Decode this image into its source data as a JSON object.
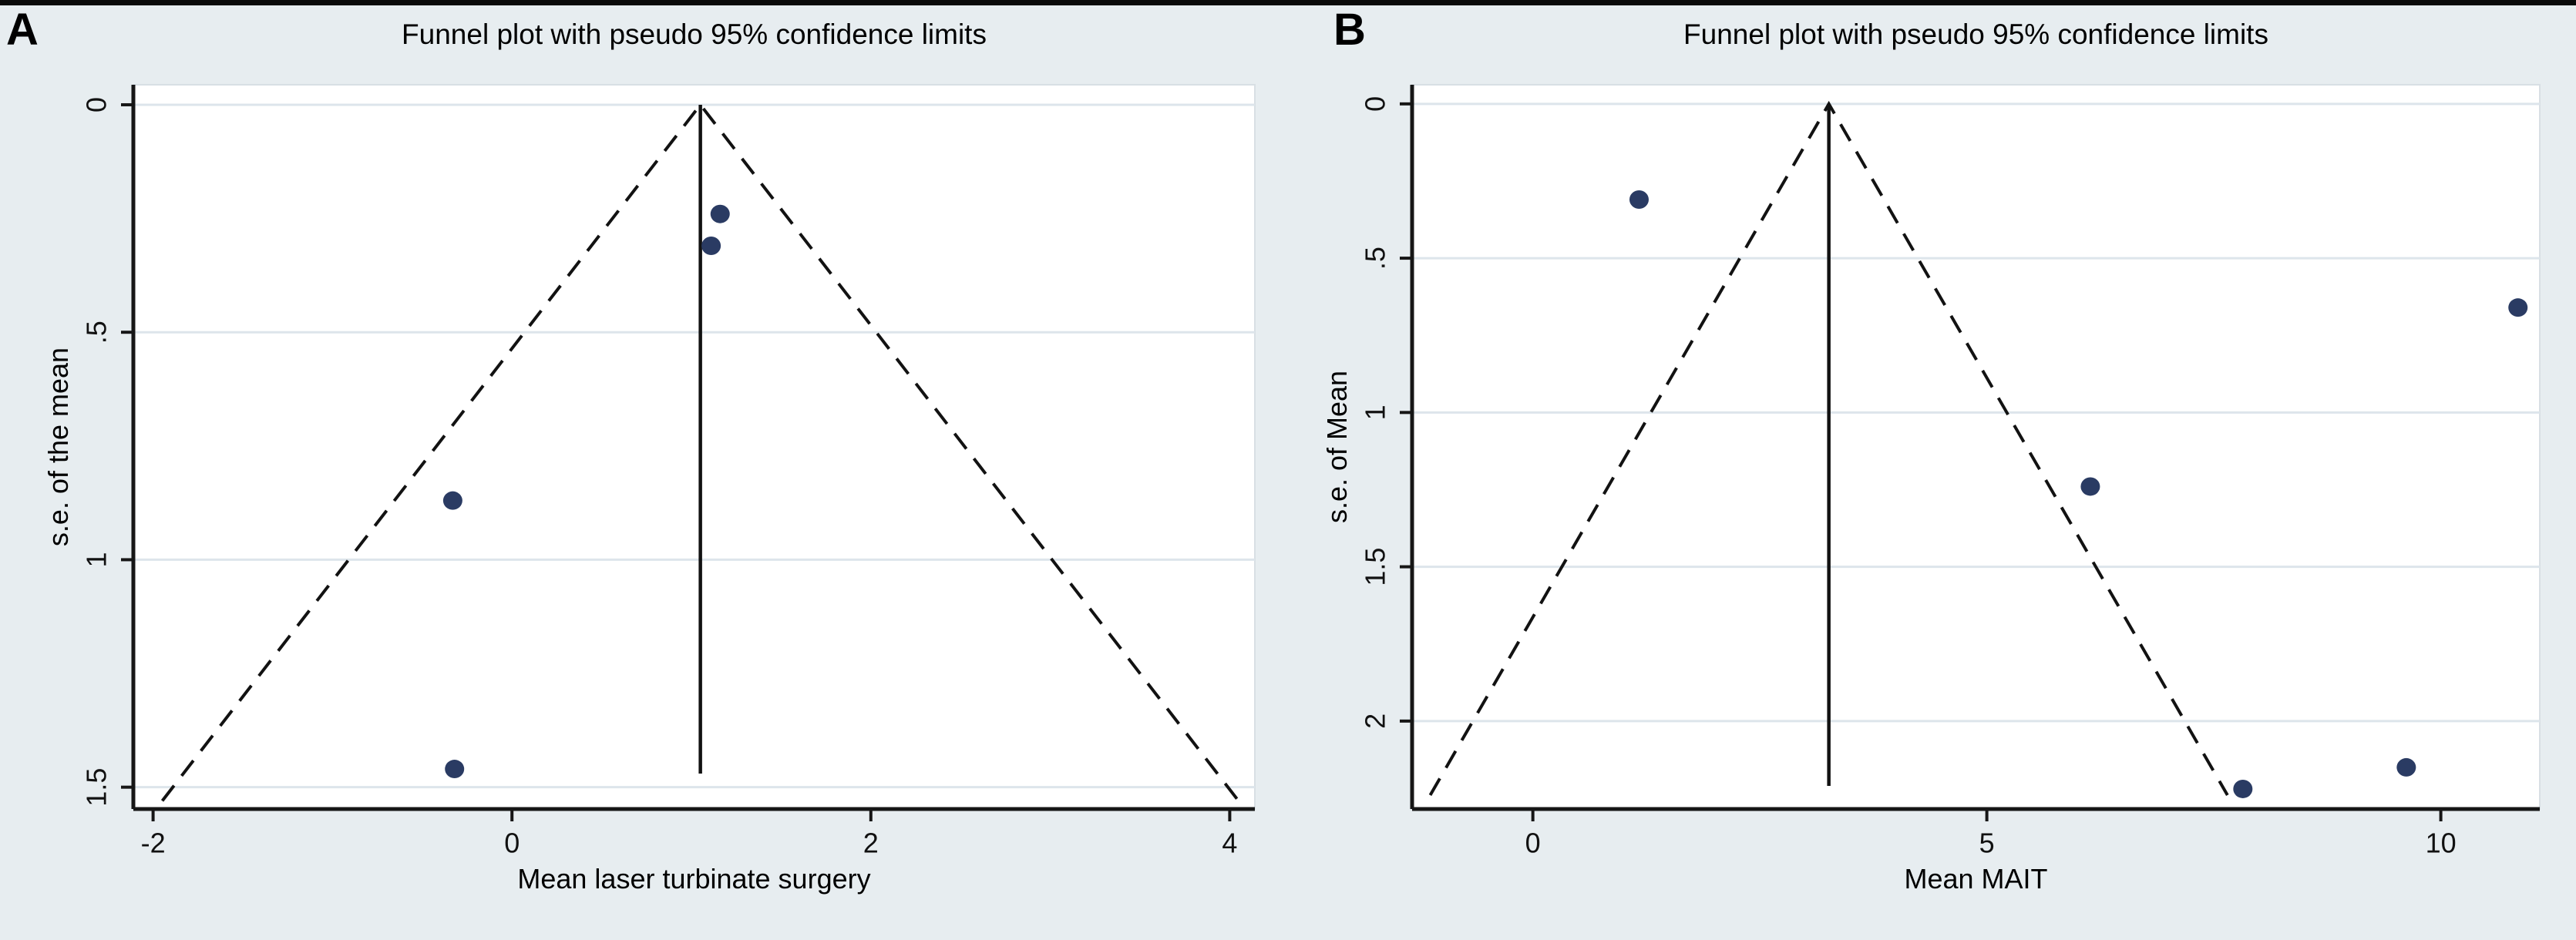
{
  "figure": {
    "background": "#e7edf0",
    "top_border_color": "#0a0a0a",
    "panels": [
      {
        "letter": "A"
      },
      {
        "letter": "B"
      }
    ]
  },
  "chart_data": [
    {
      "type": "scatter",
      "subtype": "funnel-plot",
      "panel": "A",
      "title": "Funnel plot with pseudo 95% confidence limits",
      "xlabel": "Mean laser turbinate surgery",
      "ylabel": "s.e. of the mean",
      "xlim": [
        -2.11,
        4.14
      ],
      "ylim": [
        -0.044,
        1.548
      ],
      "y_inverted": true,
      "grid": "horizontal",
      "legend": "none",
      "xticks": [
        {
          "v": -2,
          "label": "-2"
        },
        {
          "v": 0,
          "label": "0"
        },
        {
          "v": 2,
          "label": "2"
        },
        {
          "v": 4,
          "label": "4"
        }
      ],
      "yticks": [
        {
          "v": 0,
          "label": "0"
        },
        {
          "v": 0.5,
          "label": ".5"
        },
        {
          "v": 1,
          "label": "1"
        },
        {
          "v": 1.5,
          "label": "1.5"
        }
      ],
      "pooled_effect": 1.05,
      "ci_multiplier": 1.96,
      "funnel_max_se": 1.53,
      "effect_line_max_se": 1.47,
      "points": [
        {
          "x": 1.16,
          "se": 0.24
        },
        {
          "x": 1.11,
          "se": 0.31
        },
        {
          "x": -0.33,
          "se": 0.87
        },
        {
          "x": -0.32,
          "se": 1.46
        }
      ],
      "colors": {
        "point": "#2a3b63",
        "line": "#121212",
        "grid": "#dde5eb",
        "plot_bg": "#ffffff",
        "plot_edge": "#d8dfe4",
        "axis": "#161616"
      }
    },
    {
      "type": "scatter",
      "subtype": "funnel-plot",
      "panel": "B",
      "title": "Funnel plot with pseudo 95% confidence limits",
      "xlabel": "Mean MAIT",
      "ylabel": "s.e. of Mean",
      "xlim": [
        -1.33,
        11.09
      ],
      "ylim": [
        -0.062,
        2.285
      ],
      "y_inverted": true,
      "grid": "horizontal",
      "legend": "none",
      "xticks": [
        {
          "v": 0,
          "label": "0"
        },
        {
          "v": 5,
          "label": "5"
        },
        {
          "v": 10,
          "label": "10"
        }
      ],
      "yticks": [
        {
          "v": 0,
          "label": "0"
        },
        {
          "v": 0.5,
          "label": ".5"
        },
        {
          "v": 1,
          "label": "1"
        },
        {
          "v": 1.5,
          "label": "1.5"
        },
        {
          "v": 2,
          "label": "2"
        }
      ],
      "pooled_effect": 3.26,
      "ci_multiplier": 1.96,
      "funnel_max_se": 2.24,
      "effect_line_max_se": 2.21,
      "points": [
        {
          "x": 1.17,
          "se": 0.31
        },
        {
          "x": 10.85,
          "se": 0.66
        },
        {
          "x": 6.14,
          "se": 1.24
        },
        {
          "x": 7.82,
          "se": 2.22
        },
        {
          "x": 9.62,
          "se": 2.15
        }
      ],
      "colors": {
        "point": "#2a3b63",
        "line": "#121212",
        "grid": "#dde5eb",
        "plot_bg": "#ffffff",
        "plot_edge": "#d8dfe4",
        "axis": "#161616"
      }
    }
  ]
}
